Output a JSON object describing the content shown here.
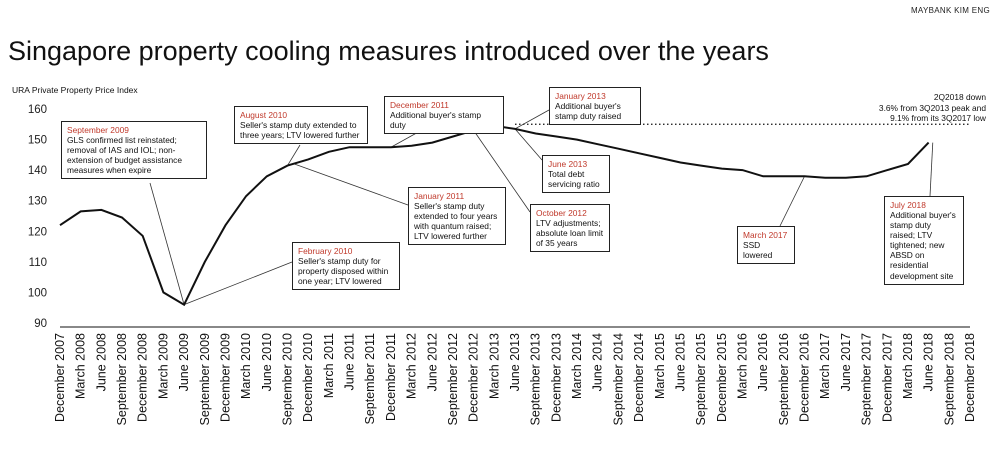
{
  "brand": "MAYBANK KIM ENG",
  "title": "Singapore property cooling measures introduced over the years",
  "accent": "#c0392b",
  "chart_data": {
    "type": "line",
    "title": "Singapore property cooling measures introduced over the years",
    "ylabel": "URA Private Property Price Index",
    "xlabel": "",
    "ylim": [
      90,
      160
    ],
    "yticks": [
      90,
      100,
      110,
      120,
      130,
      140,
      150,
      160
    ],
    "reference_line": 155,
    "categories": [
      "December 2007",
      "March 2008",
      "June 2008",
      "September 2008",
      "December 2008",
      "March 2009",
      "June 2009",
      "September 2009",
      "December 2009",
      "March 2010",
      "June 2010",
      "September 2010",
      "December 2010",
      "March 2011",
      "June 2011",
      "September 2011",
      "December 2011",
      "March 2012",
      "June 2012",
      "September 2012",
      "December 2012",
      "March 2013",
      "June 2013",
      "September 2013",
      "December 2013",
      "March 2014",
      "June 2014",
      "September 2014",
      "December 2014",
      "March 2015",
      "June 2015",
      "September 2015",
      "December 2015",
      "March 2016",
      "June 2016",
      "September 2016",
      "December 2016",
      "March 2017",
      "June 2017",
      "September 2017",
      "December 2017",
      "March 2018",
      "June 2018",
      "September 2018",
      "December 2018"
    ],
    "series": [
      {
        "name": "URA Private Property Price Index",
        "values": [
          122,
          126.5,
          127,
          124.5,
          118.5,
          100,
          96,
          110,
          122,
          131.5,
          138,
          141.5,
          143.5,
          146,
          147.5,
          147.5,
          147.5,
          148,
          149,
          151,
          153,
          154.5,
          153.5,
          152,
          151,
          150,
          148.5,
          147,
          145.5,
          144,
          142.5,
          141.5,
          140.5,
          140,
          138,
          138,
          138,
          137.5,
          137.5,
          138,
          140,
          142,
          149,
          null,
          null
        ]
      }
    ]
  },
  "annotations": [
    {
      "when": "September 2009",
      "what": "GLS confirmed list reinstated; removal of IAS and IOL; non-extension of budget assistance measures when expire"
    },
    {
      "when": "February 2010",
      "what": "Seller's stamp duty for property disposed within one year; LTV lowered"
    },
    {
      "when": "August 2010",
      "what": "Seller's stamp duty extended to three years; LTV lowered further"
    },
    {
      "when": "January 2011",
      "what": "Seller's stamp duty extended to four years with quantum raised; LTV lowered further"
    },
    {
      "when": "December 2011",
      "what": "Additional buyer's stamp duty"
    },
    {
      "when": "October 2012",
      "what": "LTV adjustments; absolute loan limit of 35 years"
    },
    {
      "when": "January 2013",
      "what": "Additional buyer's stamp duty raised"
    },
    {
      "when": "June 2013",
      "what": "Total debt servicing ratio"
    },
    {
      "when": "March 2017",
      "what": "SSD lowered"
    },
    {
      "when": "July 2018",
      "what": "Additional buyer's stamp duty raised; LTV tightened; new ABSD on residential development site"
    }
  ],
  "note": "2Q2018 down\n3.6% from 3Q2013 peak and\n9.1% from its 3Q2017 low"
}
